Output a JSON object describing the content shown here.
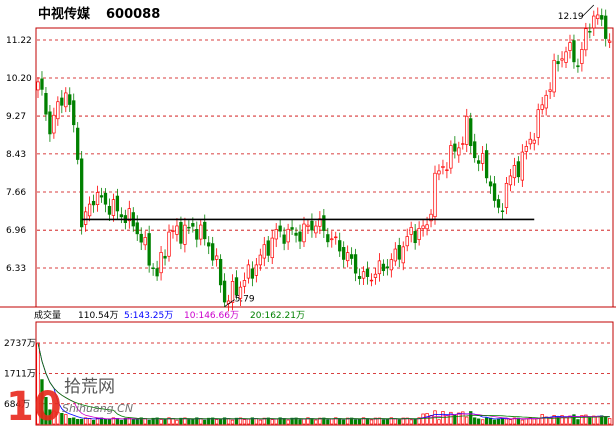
{
  "header": {
    "stock_name": "中视传媒",
    "stock_code": "600088"
  },
  "volume_panel": {
    "label": "成交量",
    "current": "110.54万",
    "ma5": "5:143.25万",
    "ma10": "10:146.66万",
    "ma20": "20:162.21万",
    "colors": {
      "ma5": "#0000ff",
      "ma10": "#cc00cc",
      "ma20": "#008000"
    }
  },
  "watermark": {
    "number": "10",
    "name": "拾荒网",
    "site": "Shihuang.CN"
  },
  "chart_data": {
    "type": "candlestick",
    "price_axis": {
      "ticks": [
        11.22,
        10.2,
        9.27,
        8.43,
        7.66,
        6.96,
        6.33
      ],
      "tick_labels": [
        "11.22",
        "10.20",
        "9.27",
        "8.43",
        "7.66",
        "6.96",
        "6.33"
      ],
      "scale": "log",
      "range": [
        5.7,
        12.4
      ]
    },
    "volume_axis": {
      "ticks": [
        2737,
        1711,
        684
      ],
      "tick_labels": [
        "2737万",
        "1711万",
        "684万"
      ],
      "range": [
        0,
        3400
      ]
    },
    "support_line": {
      "value": 7.15,
      "from_index": 11,
      "to_index": 125
    },
    "annotations": [
      {
        "text": "5.79",
        "value": 5.79,
        "index": 47,
        "kind": "low"
      },
      {
        "text": "12.19",
        "value": 12.19,
        "index": 140,
        "kind": "high"
      }
    ],
    "colors": {
      "up": "#ff0000",
      "down": "#008000",
      "grid": "#cc0000",
      "ma_line": "#0000ff"
    },
    "candles_count": 145
  }
}
